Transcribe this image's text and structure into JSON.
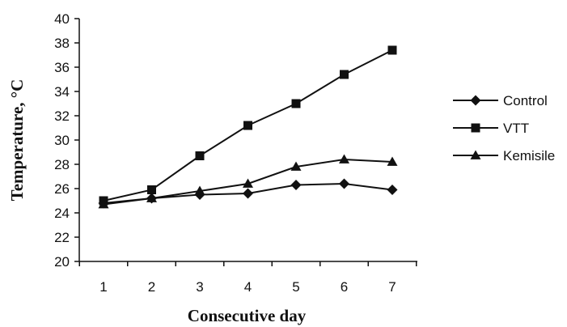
{
  "chart_data": {
    "type": "line",
    "title": "",
    "xlabel": "Consecutive day",
    "ylabel": "Temperature, °C",
    "x": [
      1,
      2,
      3,
      4,
      5,
      6,
      7
    ],
    "x_tick_labels": [
      "1",
      "2",
      "3",
      "4",
      "5",
      "6",
      "7"
    ],
    "ylim": [
      20,
      40
    ],
    "y_tick_labels": [
      "20",
      "22",
      "24",
      "26",
      "28",
      "30",
      "32",
      "34",
      "36",
      "38",
      "40"
    ],
    "grid": false,
    "legend_position": "right",
    "series": [
      {
        "name": "Control",
        "marker": "diamond",
        "color": "#111111",
        "values": [
          24.8,
          25.2,
          25.5,
          25.6,
          26.3,
          26.4,
          25.9
        ]
      },
      {
        "name": "VTT",
        "marker": "square",
        "color": "#111111",
        "values": [
          25.0,
          25.9,
          28.7,
          31.2,
          33.0,
          35.4,
          37.4
        ]
      },
      {
        "name": "Kemisile",
        "marker": "triangle",
        "color": "#111111",
        "values": [
          24.7,
          25.2,
          25.8,
          26.4,
          27.8,
          28.4,
          28.2
        ]
      }
    ]
  }
}
